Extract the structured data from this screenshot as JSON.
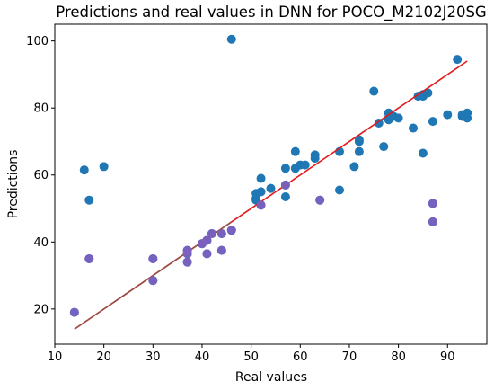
{
  "chart_data": {
    "type": "scatter",
    "title": "Predictions and real values in DNN for POCO_M2102J20SG",
    "xlabel": "Real values",
    "ylabel": "Predictions",
    "xlim": [
      10,
      98
    ],
    "ylim": [
      9.5,
      105
    ],
    "xticks": [
      10,
      20,
      30,
      40,
      50,
      60,
      70,
      80,
      90
    ],
    "yticks": [
      20,
      40,
      60,
      80,
      100
    ],
    "grid": false,
    "colors": {
      "points": "#1f77b4",
      "fit_line": "#e41a1c",
      "low_error_line": "#8c564b",
      "overlay_points": "#7f5fbf"
    },
    "fit_line": {
      "x": [
        14,
        94
      ],
      "y": [
        14,
        94
      ]
    },
    "points": [
      [
        14,
        19
      ],
      [
        16,
        61.5
      ],
      [
        17,
        52.5
      ],
      [
        17,
        35
      ],
      [
        20,
        62.5
      ],
      [
        30,
        35
      ],
      [
        30,
        28.5
      ],
      [
        37,
        37.5
      ],
      [
        37,
        36.5
      ],
      [
        37,
        34
      ],
      [
        40,
        39.5
      ],
      [
        41,
        40.5
      ],
      [
        41,
        36.5
      ],
      [
        42,
        42.5
      ],
      [
        44,
        42.5
      ],
      [
        44,
        37.5
      ],
      [
        46,
        43.5
      ],
      [
        46,
        100.5
      ],
      [
        51,
        54.5
      ],
      [
        51,
        53
      ],
      [
        51,
        52.5
      ],
      [
        52,
        59
      ],
      [
        52,
        55
      ],
      [
        52,
        51
      ],
      [
        54,
        56
      ],
      [
        57,
        62
      ],
      [
        57,
        57
      ],
      [
        57,
        53.5
      ],
      [
        59,
        67
      ],
      [
        59,
        62
      ],
      [
        60,
        63
      ],
      [
        61,
        63
      ],
      [
        63,
        66
      ],
      [
        63,
        65
      ],
      [
        64,
        52.5
      ],
      [
        68,
        67
      ],
      [
        68,
        55.5
      ],
      [
        71,
        62.5
      ],
      [
        72,
        70.5
      ],
      [
        72,
        70
      ],
      [
        72,
        67
      ],
      [
        75,
        85
      ],
      [
        76,
        75.5
      ],
      [
        77,
        68.5
      ],
      [
        78,
        78.5
      ],
      [
        78,
        77
      ],
      [
        78,
        76.5
      ],
      [
        79,
        77.5
      ],
      [
        80,
        77
      ],
      [
        83,
        74
      ],
      [
        84,
        83.5
      ],
      [
        85,
        84
      ],
      [
        85,
        83.5
      ],
      [
        85,
        66.5
      ],
      [
        86,
        84.5
      ],
      [
        87,
        76
      ],
      [
        87,
        51.5
      ],
      [
        87,
        46
      ],
      [
        90,
        78
      ],
      [
        92,
        94.5
      ],
      [
        93,
        78
      ],
      [
        93,
        77.5
      ],
      [
        94,
        78.5
      ],
      [
        94,
        77
      ]
    ],
    "overlay_points": [
      [
        14,
        19
      ],
      [
        17,
        35
      ],
      [
        30,
        35
      ],
      [
        30,
        28.5
      ],
      [
        37,
        37.5
      ],
      [
        37,
        36.5
      ],
      [
        37,
        34
      ],
      [
        40,
        39.5
      ],
      [
        41,
        40.5
      ],
      [
        41,
        36.5
      ],
      [
        42,
        42.5
      ],
      [
        44,
        42.5
      ],
      [
        44,
        37.5
      ],
      [
        46,
        43.5
      ],
      [
        52,
        51
      ],
      [
        57,
        57
      ],
      [
        64,
        52.5
      ],
      [
        87,
        51.5
      ],
      [
        87,
        46
      ]
    ]
  }
}
